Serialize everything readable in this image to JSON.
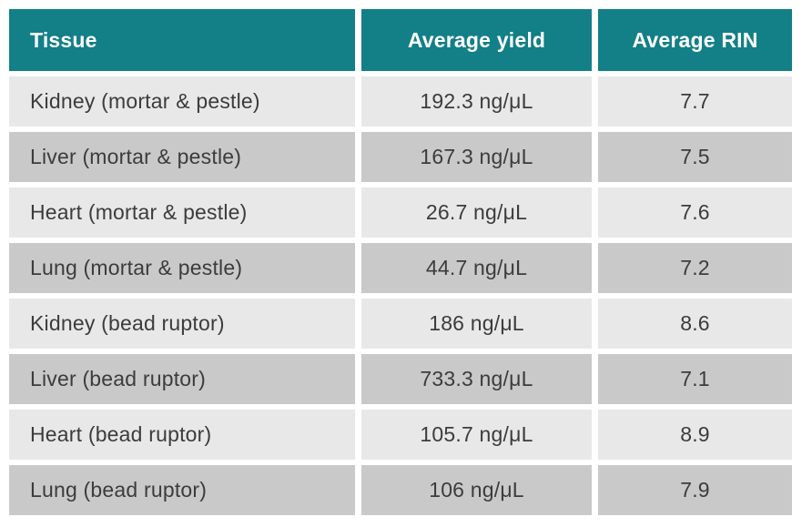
{
  "chart_data": {
    "type": "table",
    "title": "",
    "columns": [
      "Tissue",
      "Average yield",
      "Average RIN"
    ],
    "rows": [
      [
        "Kidney (mortar & pestle)",
        "192.3 ng/μL",
        "7.7"
      ],
      [
        "Liver (mortar & pestle)",
        "167.3 ng/μL",
        "7.5"
      ],
      [
        "Heart (mortar & pestle)",
        "26.7 ng/μL",
        "7.6"
      ],
      [
        "Lung (mortar & pestle)",
        "44.7 ng/μL",
        "7.2"
      ],
      [
        "Kidney (bead ruptor)",
        "186 ng/μL",
        "8.6"
      ],
      [
        "Liver (bead ruptor)",
        "733.3 ng/μL",
        "7.1"
      ],
      [
        "Heart (bead ruptor)",
        "105.7 ng/μL",
        "8.9"
      ],
      [
        "Lung (bead ruptor)",
        "106 ng/μL",
        "7.9"
      ]
    ],
    "layout": {
      "row_striping": "alternating light/dark gray starting light",
      "column_alignments": [
        "left",
        "center",
        "center"
      ]
    },
    "colors": {
      "header_bg": "#137f87",
      "header_text": "#ffffff",
      "row_light_bg": "#e8e8e8",
      "row_dark_bg": "#c9c9c9",
      "body_text": "#3c3c3c",
      "page_bg": "#ffffff"
    }
  }
}
